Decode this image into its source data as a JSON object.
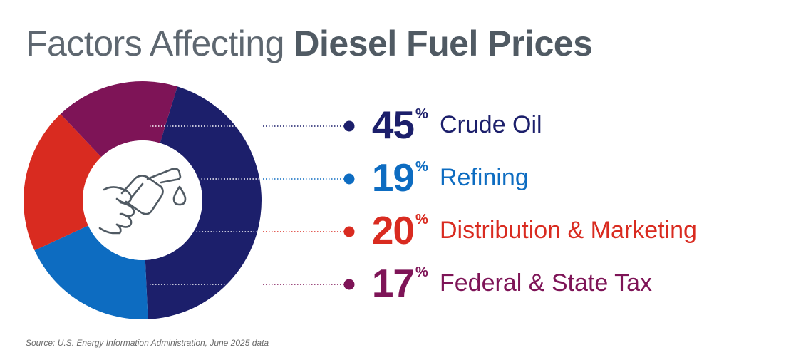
{
  "title": {
    "light": "Factors Affecting",
    "bold": "Diesel Fuel Prices"
  },
  "chart_data": {
    "type": "pie",
    "title": "Factors Affecting Diesel Fuel Prices",
    "unit": "%",
    "slices": [
      {
        "label": "Crude Oil",
        "value": 45,
        "color": "#1c1f6b"
      },
      {
        "label": "Refining",
        "value": 19,
        "color": "#0d6cc1"
      },
      {
        "label": "Distribution & Marketing",
        "value": 20,
        "color": "#d92b20"
      },
      {
        "label": "Federal & State Tax",
        "value": 17,
        "color": "#7e1457"
      }
    ]
  },
  "center_icon": "fuel-nozzle-icon",
  "legend_rows": [
    {
      "number": "45",
      "pct_sign": "%",
      "label": "Crude Oil",
      "color": "#1c1f6b"
    },
    {
      "number": "19",
      "pct_sign": "%",
      "label": "Refining",
      "color": "#0d6cc1"
    },
    {
      "number": "20",
      "pct_sign": "%",
      "label": "Distribution & Marketing",
      "color": "#d92b20"
    },
    {
      "number": "17",
      "pct_sign": "%",
      "label": "Federal & State Tax",
      "color": "#7e1457"
    }
  ],
  "source": "Source: U.S. Energy Information Administration, June 2025 data"
}
